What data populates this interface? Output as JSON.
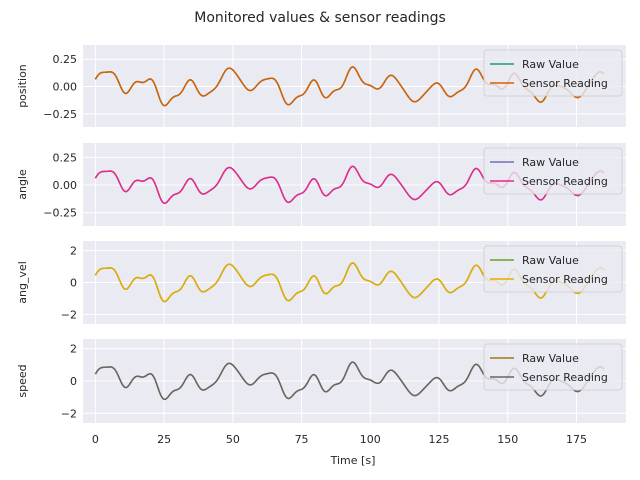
{
  "figure": {
    "title": "Monitored values & sensor readings",
    "xlabel": "Time [s]"
  },
  "chart_data": {
    "type": "line",
    "style": "seaborn-darkgrid",
    "background": "#EAEAF2",
    "grid": true,
    "shared_x": true,
    "x_range": [
      -4.5,
      193
    ],
    "x_ticks": [
      0,
      25,
      50,
      75,
      100,
      125,
      150,
      175
    ],
    "x_end": 185,
    "legend_placement": "upper right",
    "panels": [
      {
        "ylabel": "position",
        "ylim": [
          -0.37,
          0.38
        ],
        "yticks": [
          -0.25,
          0.0,
          0.25
        ],
        "ytick_labels": [
          "−0.25",
          "0.00",
          "0.25"
        ],
        "amplitude_scale": 0.154,
        "series": [
          {
            "name": "Raw Value",
            "color": "#1b9e77"
          },
          {
            "name": "Sensor Reading",
            "color": "#d95f02"
          }
        ]
      },
      {
        "ylabel": "angle",
        "ylim": [
          -0.37,
          0.38
        ],
        "yticks": [
          -0.25,
          0.0,
          0.25
        ],
        "ytick_labels": [
          "−0.25",
          "0.00",
          "0.25"
        ],
        "amplitude_scale": 0.145,
        "series": [
          {
            "name": "Raw Value",
            "color": "#7570b3"
          },
          {
            "name": "Sensor Reading",
            "color": "#e7298a"
          }
        ]
      },
      {
        "ylabel": "ang_vel",
        "ylim": [
          -2.6,
          2.6
        ],
        "yticks": [
          -2,
          0,
          2
        ],
        "ytick_labels": [
          "−2",
          "0",
          "2"
        ],
        "amplitude_scale": 1.05,
        "series": [
          {
            "name": "Raw Value",
            "color": "#66a61e"
          },
          {
            "name": "Sensor Reading",
            "color": "#e6ab02"
          }
        ]
      },
      {
        "ylabel": "speed",
        "ylim": [
          -2.6,
          2.6
        ],
        "yticks": [
          -2,
          0,
          2
        ],
        "ytick_labels": [
          "−2",
          "0",
          "2"
        ],
        "amplitude_scale": 1.0,
        "series": [
          {
            "name": "Raw Value",
            "color": "#a6761d"
          },
          {
            "name": "Sensor Reading",
            "color": "#666666"
          }
        ]
      }
    ]
  }
}
